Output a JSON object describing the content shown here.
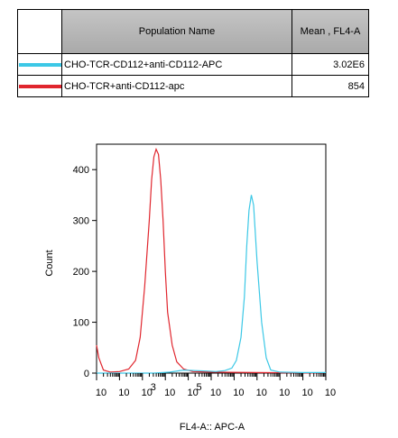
{
  "table": {
    "header_name": "Population Name",
    "header_mean": "Mean , FL4-A",
    "rows": [
      {
        "name": "CHO-TCR-CD112+anti-CD112-APC",
        "mean": "3.02E6",
        "color": "#3cc8e6"
      },
      {
        "name": "CHO-TCR+anti-CD112-apc",
        "mean": "854",
        "color": "#e0262e"
      }
    ]
  },
  "chart_data": {
    "type": "line",
    "title": "",
    "xlabel": "FL4-A:: APC-A",
    "ylabel": "Count",
    "xlim": [
      0,
      10
    ],
    "ylim": [
      0,
      450
    ],
    "yticks": [
      0,
      100,
      200,
      300,
      400
    ],
    "xtick_labels": [
      "10",
      "10",
      "10",
      "10",
      "10",
      "10",
      "10",
      "10",
      "10",
      "10",
      "10"
    ],
    "xtick_exponents": [
      "",
      "",
      "3",
      "",
      "5",
      "",
      "",
      "",
      "",
      "",
      ""
    ],
    "series": [
      {
        "name": "CHO-TCR+anti-CD112-apc",
        "color": "#e0262e",
        "x": [
          0.0,
          0.1,
          0.3,
          0.6,
          1.0,
          1.4,
          1.7,
          1.9,
          2.1,
          2.3,
          2.4,
          2.5,
          2.6,
          2.7,
          2.8,
          2.9,
          3.0,
          3.1,
          3.3,
          3.5,
          3.8,
          4.2,
          5.0,
          7.0,
          10.0
        ],
        "y": [
          55,
          30,
          6,
          2,
          3,
          8,
          25,
          70,
          170,
          300,
          380,
          425,
          440,
          430,
          380,
          300,
          200,
          120,
          55,
          22,
          8,
          3,
          2,
          1,
          0
        ]
      },
      {
        "name": "CHO-TCR-CD112+anti-CD112-APC",
        "color": "#3cc8e6",
        "x": [
          0.0,
          2.5,
          3.2,
          3.8,
          4.3,
          4.8,
          5.2,
          5.6,
          5.9,
          6.1,
          6.3,
          6.45,
          6.55,
          6.65,
          6.75,
          6.85,
          7.0,
          7.2,
          7.4,
          7.6,
          8.0,
          9.0,
          10.0
        ],
        "y": [
          0,
          0,
          2,
          6,
          5,
          4,
          3,
          5,
          10,
          25,
          70,
          150,
          250,
          320,
          350,
          330,
          220,
          100,
          30,
          6,
          2,
          1,
          1
        ]
      }
    ]
  }
}
